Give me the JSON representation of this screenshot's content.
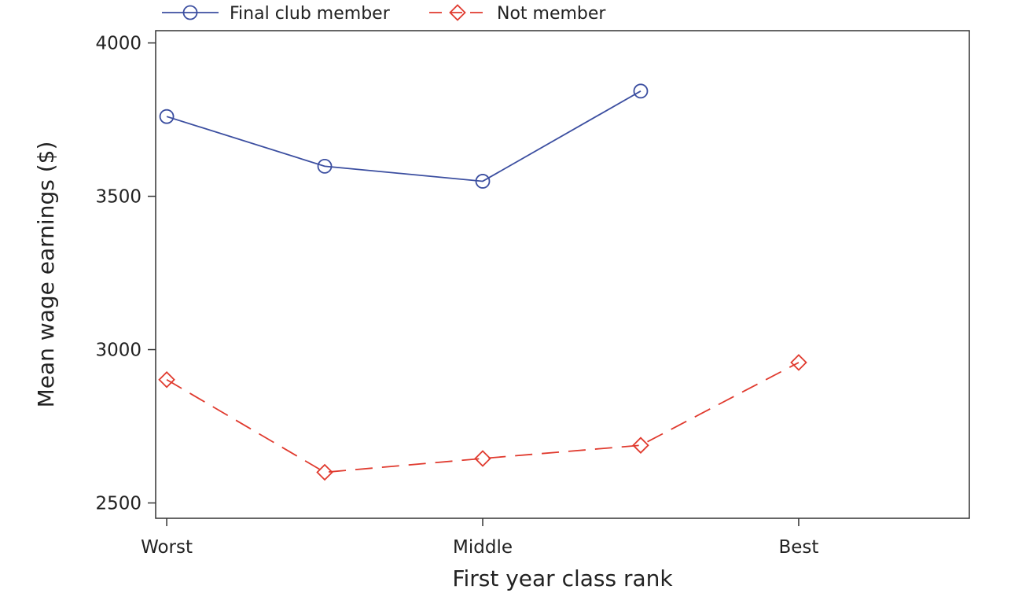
{
  "chart_data": {
    "type": "line",
    "title": "",
    "xlabel": "First year class rank",
    "ylabel": "Mean wage earnings ($)",
    "x": [
      1,
      2,
      3,
      4,
      5
    ],
    "x_ticks": [
      {
        "value": 1,
        "label": "Worst"
      },
      {
        "value": 3,
        "label": "Middle"
      },
      {
        "value": 5,
        "label": "Best"
      }
    ],
    "xlim": [
      0.93,
      6.08
    ],
    "ylim": [
      2450,
      4040
    ],
    "y_ticks": [
      2500,
      3000,
      3500,
      4000
    ],
    "y_tick_labels": [
      "2500",
      "3000",
      "3500",
      "4000"
    ],
    "grid": false,
    "legend_position": "top",
    "series": [
      {
        "name": "Final club member",
        "color": "#3b4ea0",
        "marker": "circle",
        "line": "solid",
        "x": [
          1,
          2,
          3,
          4
        ],
        "values": [
          3760,
          3598,
          3549,
          3843
        ]
      },
      {
        "name": "Not member",
        "color": "#e03a2e",
        "marker": "diamond",
        "line": "dashed",
        "x": [
          1,
          2,
          3,
          4,
          5
        ],
        "values": [
          2902,
          2600,
          2645,
          2688,
          2958
        ]
      }
    ]
  }
}
